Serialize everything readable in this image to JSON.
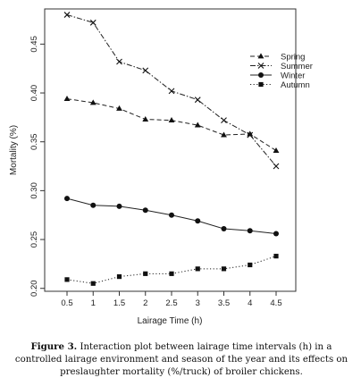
{
  "chart_data": {
    "type": "line",
    "xlabel": "Lairage Time (h)",
    "ylabel": "Mortality (%)",
    "x": [
      0.5,
      1,
      1.5,
      2,
      2.5,
      3,
      3.5,
      4,
      4.5
    ],
    "x_tick_labels": [
      "0.5",
      "1",
      "1.5",
      "2",
      "2.5",
      "3",
      "3.5",
      "4",
      "4.5"
    ],
    "y_ticks": [
      0.2,
      0.25,
      0.3,
      0.35,
      0.4,
      0.45
    ],
    "y_tick_labels": [
      "0.20",
      "0.25",
      "0.30",
      "0.35",
      "0.40",
      "0.45"
    ],
    "ylim": [
      0.197,
      0.486
    ],
    "grid": false,
    "legend_position": "top-right",
    "series": [
      {
        "name": "Spring",
        "marker": "triangle",
        "line": "dashed",
        "values": [
          0.394,
          0.39,
          0.384,
          0.373,
          0.372,
          0.367,
          0.357,
          0.358,
          0.341
        ]
      },
      {
        "name": "Summer",
        "marker": "x",
        "line": "dash-dot",
        "values": [
          0.48,
          0.472,
          0.432,
          0.423,
          0.402,
          0.393,
          0.372,
          0.357,
          0.325
        ]
      },
      {
        "name": "Winter",
        "marker": "circle",
        "line": "solid",
        "values": [
          0.292,
          0.285,
          0.284,
          0.28,
          0.275,
          0.269,
          0.261,
          0.259,
          0.256
        ]
      },
      {
        "name": "Autumn",
        "marker": "square",
        "line": "dotted",
        "values": [
          0.209,
          0.205,
          0.212,
          0.215,
          0.215,
          0.22,
          0.22,
          0.224,
          0.233
        ]
      }
    ]
  },
  "caption": {
    "label": "Figure 3.",
    "text": "Interaction plot between lairage time intervals (h) in a controlled lairage environment and season of the year and its effects on preslaughter mortality (%/truck) of broiler chickens."
  }
}
